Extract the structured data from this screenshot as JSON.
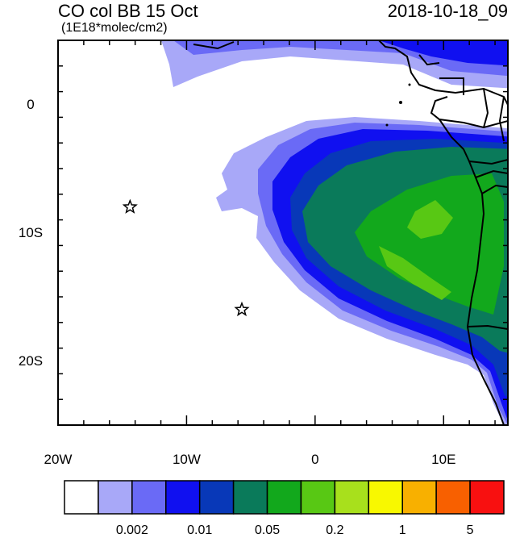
{
  "header": {
    "title": "CO col BB 15 Oct",
    "units": "(1E18*molec/cm2)",
    "datetime": "2018-10-18_09"
  },
  "map": {
    "lon_range": [
      -20,
      15
    ],
    "lat_range": [
      -25,
      5
    ],
    "x_ticks": [
      {
        "value": -20,
        "label": "20W"
      },
      {
        "value": -10,
        "label": "10W"
      },
      {
        "value": 0,
        "label": "0"
      },
      {
        "value": 10,
        "label": "10E"
      }
    ],
    "y_ticks": [
      {
        "value": 0,
        "label": "0"
      },
      {
        "value": -10,
        "label": "10S"
      },
      {
        "value": -20,
        "label": "20S"
      }
    ],
    "markers": [
      {
        "name": "star-marker-ascension",
        "lon": -14.4,
        "lat": -8.0,
        "symbol": "star"
      },
      {
        "name": "star-marker-st-helena",
        "lon": -5.7,
        "lat": -16.0,
        "symbol": "star"
      }
    ]
  },
  "colorbar": {
    "colors": [
      "#ffffff",
      "#a8a8f8",
      "#6a6af6",
      "#1010f0",
      "#0838b8",
      "#0a7a5a",
      "#12a81c",
      "#58c814",
      "#a8e01c",
      "#f8f800",
      "#f8b000",
      "#f86000",
      "#f81010"
    ],
    "labels": [
      {
        "text": "0.002",
        "boundary": 2
      },
      {
        "text": "0.01",
        "boundary": 4
      },
      {
        "text": "0.05",
        "boundary": 6
      },
      {
        "text": "0.2",
        "boundary": 8
      },
      {
        "text": "1",
        "boundary": 10
      },
      {
        "text": "5",
        "boundary": 12
      }
    ]
  }
}
